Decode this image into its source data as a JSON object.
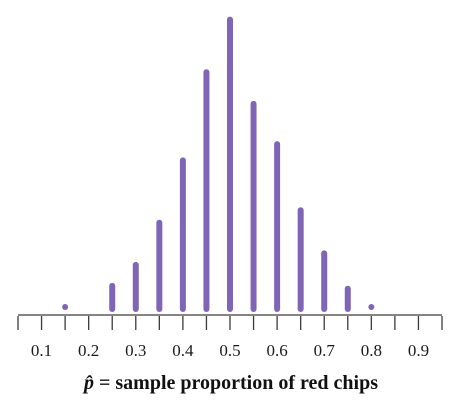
{
  "chart_data": {
    "type": "bar",
    "x": [
      0.15,
      0.25,
      0.3,
      0.35,
      0.4,
      0.45,
      0.5,
      0.55,
      0.6,
      0.65,
      0.7,
      0.75,
      0.8
    ],
    "values": [
      0.3,
      2.2,
      4.4,
      8.8,
      15.3,
      24.5,
      30.0,
      21.2,
      17.0,
      10.1,
      5.6,
      1.9,
      0.4
    ],
    "xticks": [
      "0.1",
      "0.2",
      "0.3",
      "0.4",
      "0.5",
      "0.6",
      "0.7",
      "0.8",
      "0.9"
    ],
    "xlim": [
      0.05,
      0.95
    ],
    "ylim": [
      0,
      31
    ],
    "xlabel_symbol": "p̂",
    "xlabel_text": " = sample proportion of red chips",
    "grid": false,
    "colors": {
      "bar": "#8064b6",
      "axis": "#3a3a3a",
      "text": "#111111"
    }
  }
}
